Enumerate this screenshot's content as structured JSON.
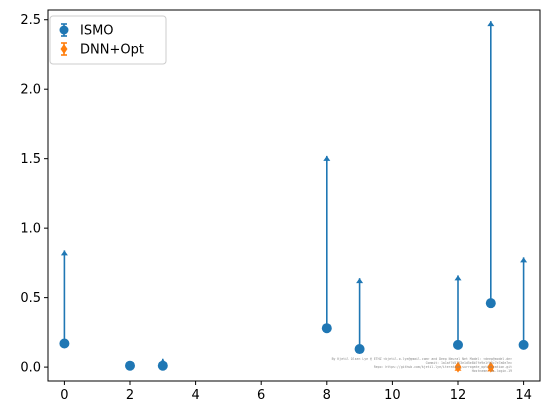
{
  "chart_data": {
    "type": "scatter",
    "xlim": [
      -0.5,
      14.5
    ],
    "ylim": [
      -0.1,
      2.57
    ],
    "x_ticks": [
      0,
      2,
      4,
      6,
      8,
      10,
      12,
      14
    ],
    "x_tick_labels": [
      "0",
      "2",
      "4",
      "6",
      "8",
      "10",
      "12",
      "14"
    ],
    "y_ticks": [
      0.0,
      0.5,
      1.0,
      1.5,
      2.0,
      2.5
    ],
    "y_tick_labels": [
      "0.0",
      "0.5",
      "1.0",
      "1.5",
      "2.0",
      "2.5"
    ],
    "grid": false,
    "legend_position": "top-left",
    "series": [
      {
        "name": "ISMO",
        "color": "#1f77b4",
        "marker": "circle",
        "points": [
          {
            "x": 0,
            "y": 0.17,
            "upper": 0.84
          },
          {
            "x": 2,
            "y": 0.01,
            "upper": 0.03
          },
          {
            "x": 3,
            "y": 0.01,
            "upper": 0.06
          },
          {
            "x": 8,
            "y": 0.28,
            "upper": 1.52
          },
          {
            "x": 9,
            "y": 0.13,
            "upper": 0.64
          },
          {
            "x": 12,
            "y": 0.16,
            "upper": 0.66
          },
          {
            "x": 13,
            "y": 0.46,
            "upper": 2.49
          },
          {
            "x": 14,
            "y": 0.16,
            "upper": 0.79
          }
        ]
      },
      {
        "name": "DNN+Opt",
        "color": "#ff7f0e",
        "marker": "diamond",
        "points": [
          {
            "x": 12,
            "y": 0.0,
            "upper": 0.01
          },
          {
            "x": 13,
            "y": 0.0,
            "upper": 0.005
          }
        ]
      }
    ],
    "watermark_lines": [
      "By Kjetil Olsen Lye @ ETHZ <kjetil.o.lye@gmail.com> and Deep Neural Net Model: <deep@model.de>",
      "Commit: 1a1af7d5753e1d5e8b7fe9e1fb3c7e7a0e7ec",
      "Repo: https://github.com/kjetil-lye/iterative_surrogate_optimization.git",
      "Hostname: ss-login-19"
    ]
  }
}
